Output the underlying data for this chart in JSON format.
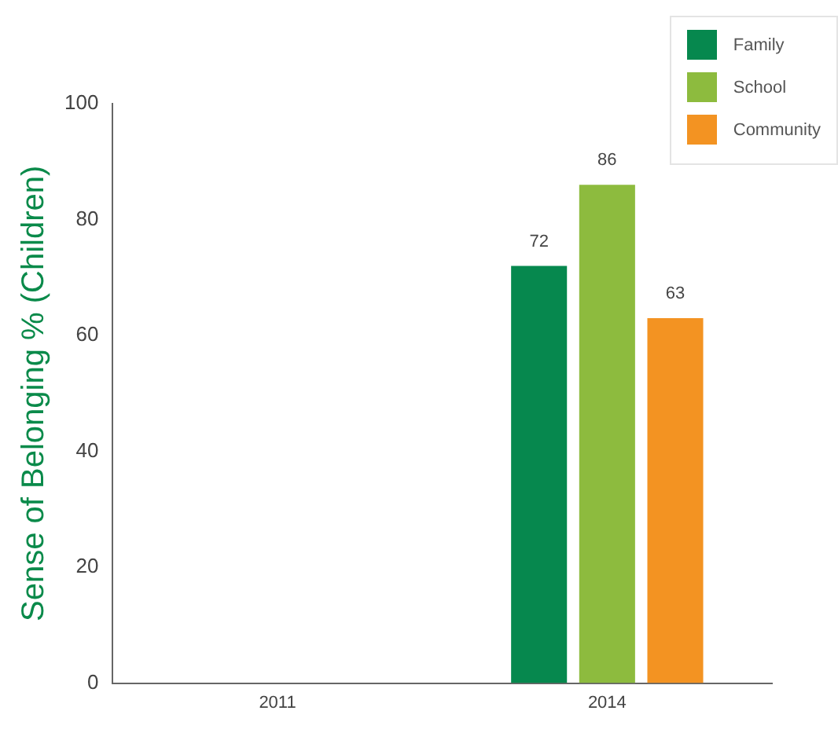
{
  "chart_data": {
    "type": "bar",
    "ylabel": "Sense of Belonging % (Children)",
    "categories": [
      "2011",
      "2014"
    ],
    "series": [
      {
        "name": "Family",
        "color": "#06884e",
        "values": [
          null,
          72
        ]
      },
      {
        "name": "School",
        "color": "#8dbb3e",
        "values": [
          null,
          86
        ]
      },
      {
        "name": "Community",
        "color": "#f39322",
        "values": [
          null,
          63
        ]
      }
    ],
    "ylim": [
      0,
      100
    ],
    "yticks": [
      0,
      20,
      40,
      60,
      80,
      100
    ],
    "grid": false,
    "legend": "top right",
    "data_labels": true
  }
}
